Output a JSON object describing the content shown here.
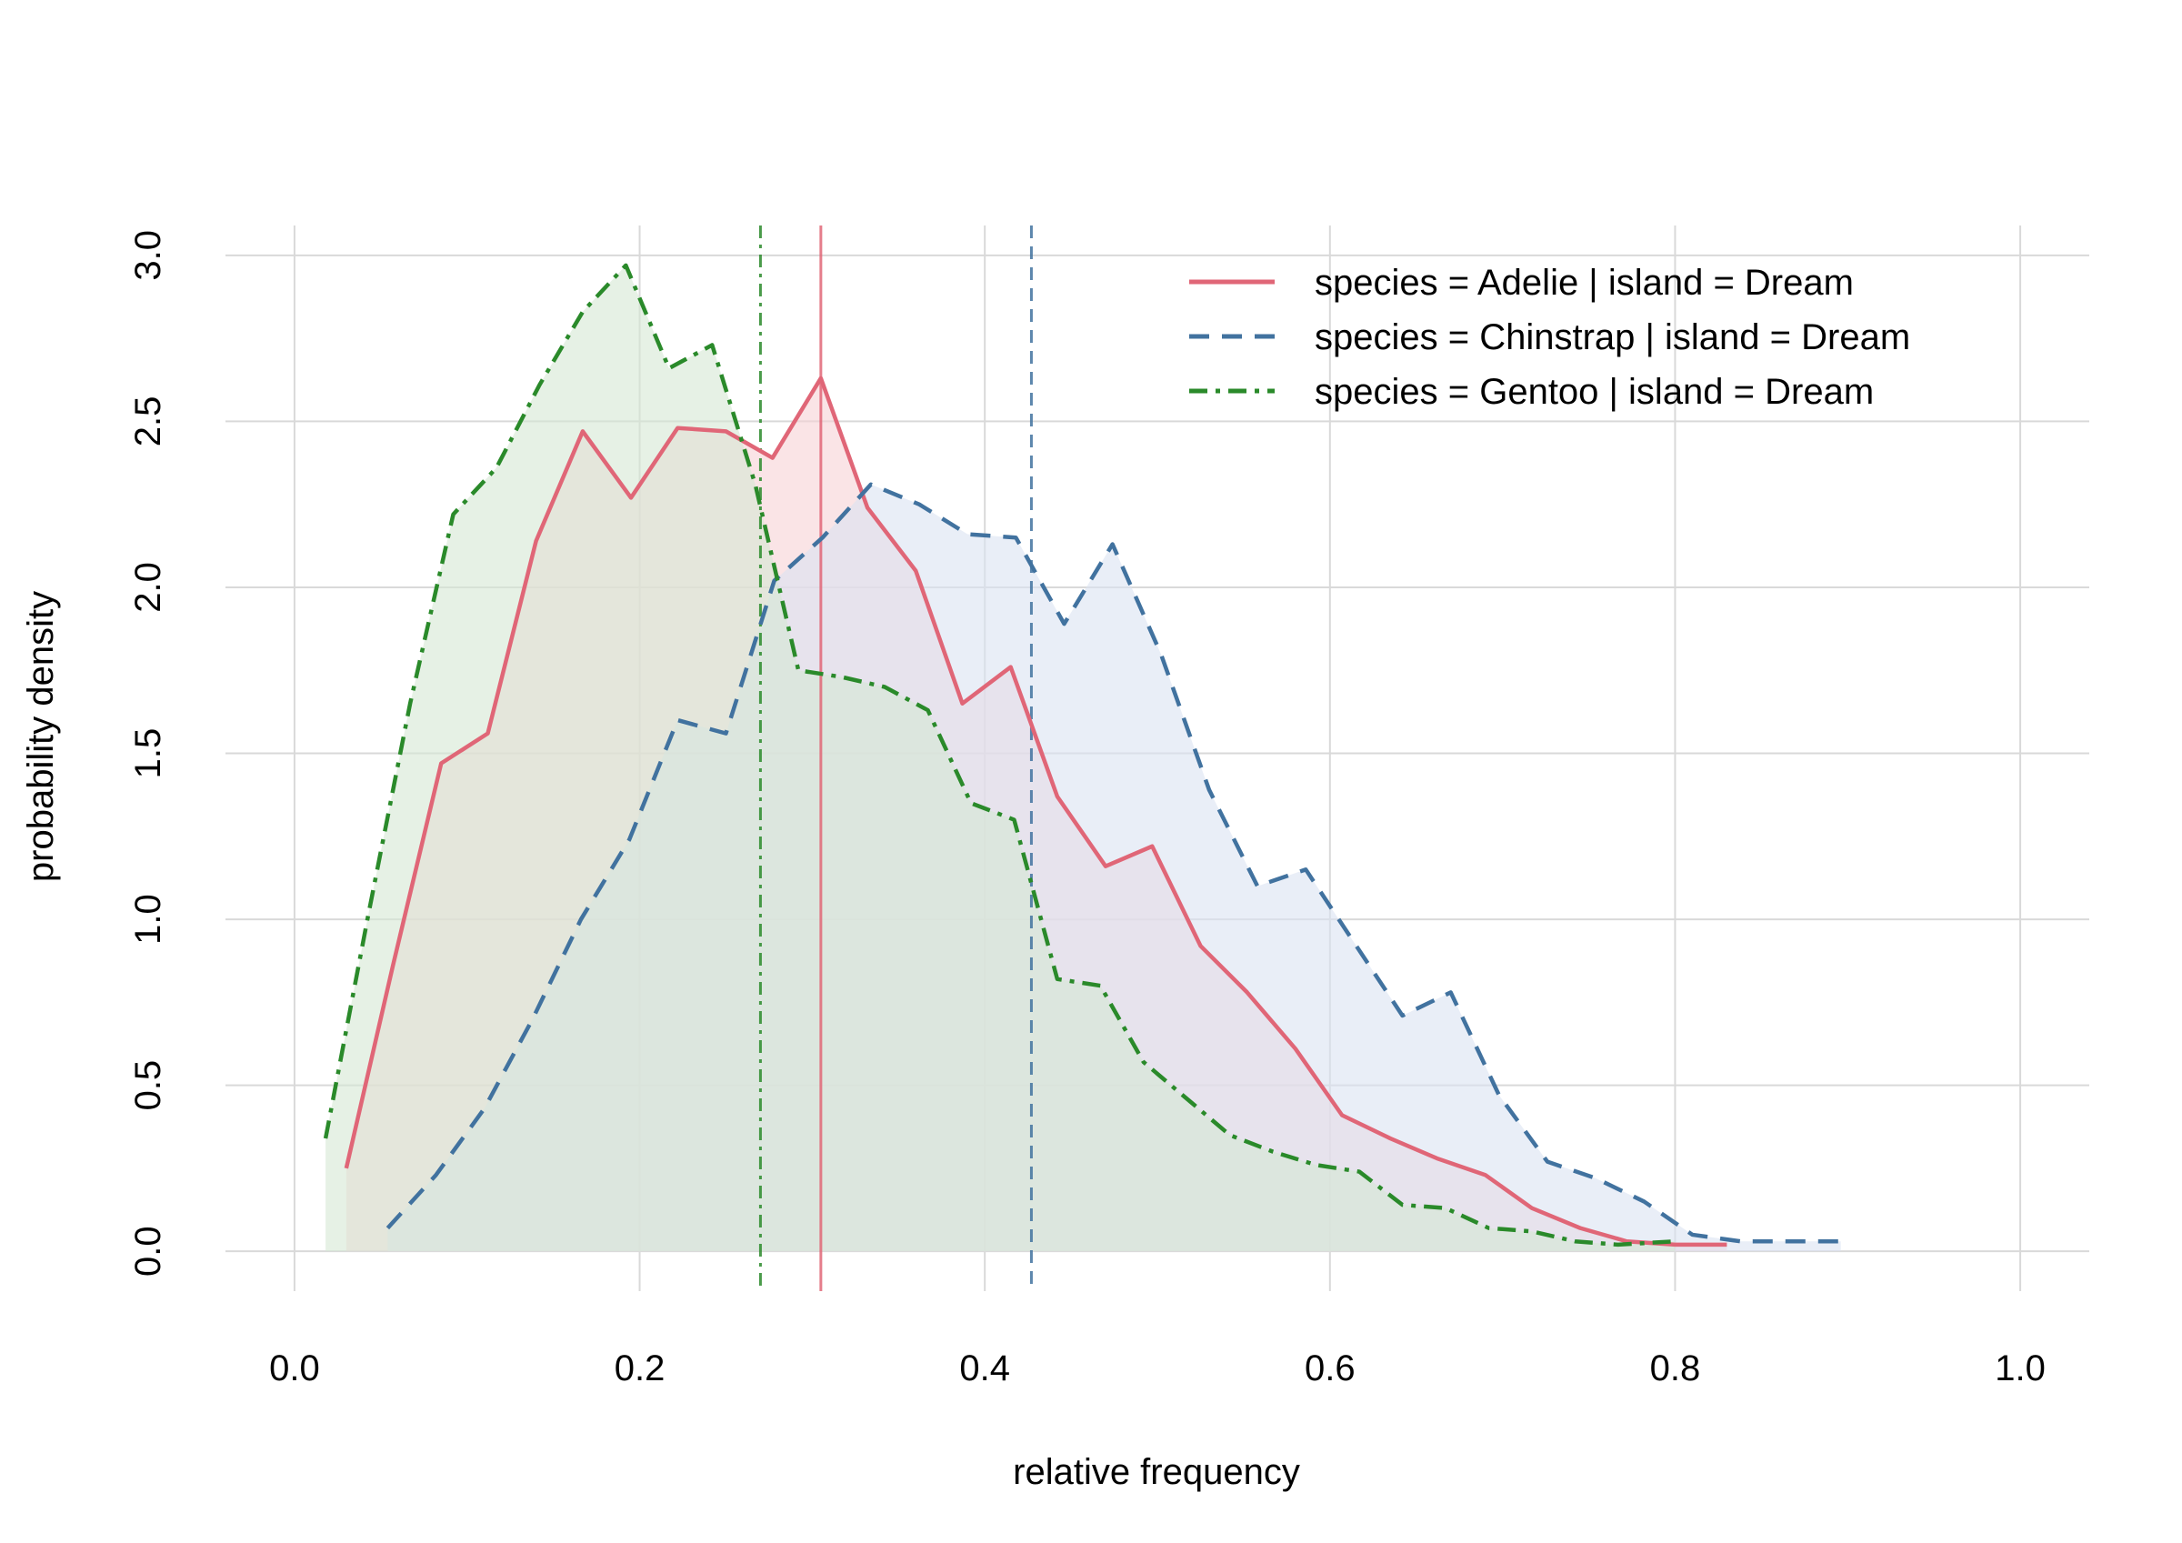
{
  "chart_data": {
    "type": "area",
    "title": "",
    "xlabel": "relative frequency",
    "ylabel": "probability density",
    "xlim": [
      -0.04,
      1.04
    ],
    "ylim": [
      -0.12,
      3.09
    ],
    "x_ticks": [
      0.0,
      0.2,
      0.4,
      0.6,
      0.8,
      1.0
    ],
    "x_tick_labels": [
      "0.0",
      "0.2",
      "0.4",
      "0.6",
      "0.8",
      "1.0"
    ],
    "y_ticks": [
      0.0,
      0.5,
      1.0,
      1.5,
      2.0,
      2.5,
      3.0
    ],
    "y_tick_labels": [
      "0.0",
      "0.5",
      "1.0",
      "1.5",
      "2.0",
      "2.5",
      "3.0"
    ],
    "grid": true,
    "legend_position": "top-right",
    "series": [
      {
        "name": "species = Adelie | island = Dream",
        "color": "#e06677",
        "fill": "#f6d2d6",
        "dash": "solid",
        "mean": 0.305,
        "points": [
          [
            0.03,
            0.25
          ],
          [
            0.057,
            0.86
          ],
          [
            0.085,
            1.47
          ],
          [
            0.112,
            1.56
          ],
          [
            0.14,
            2.14
          ],
          [
            0.167,
            2.47
          ],
          [
            0.195,
            2.27
          ],
          [
            0.222,
            2.48
          ],
          [
            0.25,
            2.47
          ],
          [
            0.277,
            2.39
          ],
          [
            0.305,
            2.63
          ],
          [
            0.332,
            2.24
          ],
          [
            0.36,
            2.05
          ],
          [
            0.387,
            1.65
          ],
          [
            0.415,
            1.76
          ],
          [
            0.442,
            1.37
          ],
          [
            0.47,
            1.16
          ],
          [
            0.497,
            1.22
          ],
          [
            0.525,
            0.92
          ],
          [
            0.552,
            0.78
          ],
          [
            0.58,
            0.61
          ],
          [
            0.607,
            0.41
          ],
          [
            0.635,
            0.34
          ],
          [
            0.662,
            0.28
          ],
          [
            0.69,
            0.23
          ],
          [
            0.717,
            0.13
          ],
          [
            0.745,
            0.07
          ],
          [
            0.772,
            0.03
          ],
          [
            0.8,
            0.02
          ],
          [
            0.83,
            0.02
          ]
        ]
      },
      {
        "name": "species = Chinstrap | island = Dream",
        "color": "#41729f",
        "fill": "#dbe3f1",
        "dash": "dashed",
        "mean": 0.427,
        "points": [
          [
            0.054,
            0.07
          ],
          [
            0.082,
            0.23
          ],
          [
            0.11,
            0.43
          ],
          [
            0.138,
            0.7
          ],
          [
            0.166,
            1.0
          ],
          [
            0.194,
            1.24
          ],
          [
            0.222,
            1.6
          ],
          [
            0.25,
            1.56
          ],
          [
            0.278,
            2.02
          ],
          [
            0.306,
            2.15
          ],
          [
            0.334,
            2.31
          ],
          [
            0.362,
            2.25
          ],
          [
            0.39,
            2.16
          ],
          [
            0.418,
            2.15
          ],
          [
            0.446,
            1.89
          ],
          [
            0.474,
            2.13
          ],
          [
            0.502,
            1.8
          ],
          [
            0.53,
            1.39
          ],
          [
            0.558,
            1.1
          ],
          [
            0.586,
            1.15
          ],
          [
            0.614,
            0.93
          ],
          [
            0.642,
            0.71
          ],
          [
            0.67,
            0.78
          ],
          [
            0.698,
            0.47
          ],
          [
            0.726,
            0.27
          ],
          [
            0.754,
            0.22
          ],
          [
            0.782,
            0.15
          ],
          [
            0.81,
            0.05
          ],
          [
            0.838,
            0.03
          ],
          [
            0.866,
            0.03
          ],
          [
            0.896,
            0.03
          ]
        ]
      },
      {
        "name": "species = Gentoo | island = Dream",
        "color": "#2a8a2a",
        "fill": "#d5e8d3",
        "dash": "dotdash",
        "mean": 0.27,
        "points": [
          [
            0.018,
            0.34
          ],
          [
            0.043,
            1.02
          ],
          [
            0.067,
            1.65
          ],
          [
            0.092,
            2.22
          ],
          [
            0.117,
            2.36
          ],
          [
            0.142,
            2.61
          ],
          [
            0.167,
            2.83
          ],
          [
            0.192,
            2.97
          ],
          [
            0.217,
            2.66
          ],
          [
            0.242,
            2.73
          ],
          [
            0.267,
            2.31
          ],
          [
            0.292,
            1.75
          ],
          [
            0.317,
            1.73
          ],
          [
            0.342,
            1.7
          ],
          [
            0.367,
            1.63
          ],
          [
            0.392,
            1.35
          ],
          [
            0.417,
            1.3
          ],
          [
            0.442,
            0.82
          ],
          [
            0.467,
            0.8
          ],
          [
            0.492,
            0.57
          ],
          [
            0.517,
            0.46
          ],
          [
            0.542,
            0.35
          ],
          [
            0.567,
            0.3
          ],
          [
            0.592,
            0.26
          ],
          [
            0.617,
            0.24
          ],
          [
            0.642,
            0.14
          ],
          [
            0.667,
            0.13
          ],
          [
            0.692,
            0.07
          ],
          [
            0.717,
            0.06
          ],
          [
            0.742,
            0.03
          ],
          [
            0.767,
            0.02
          ],
          [
            0.8,
            0.03
          ]
        ]
      }
    ]
  }
}
